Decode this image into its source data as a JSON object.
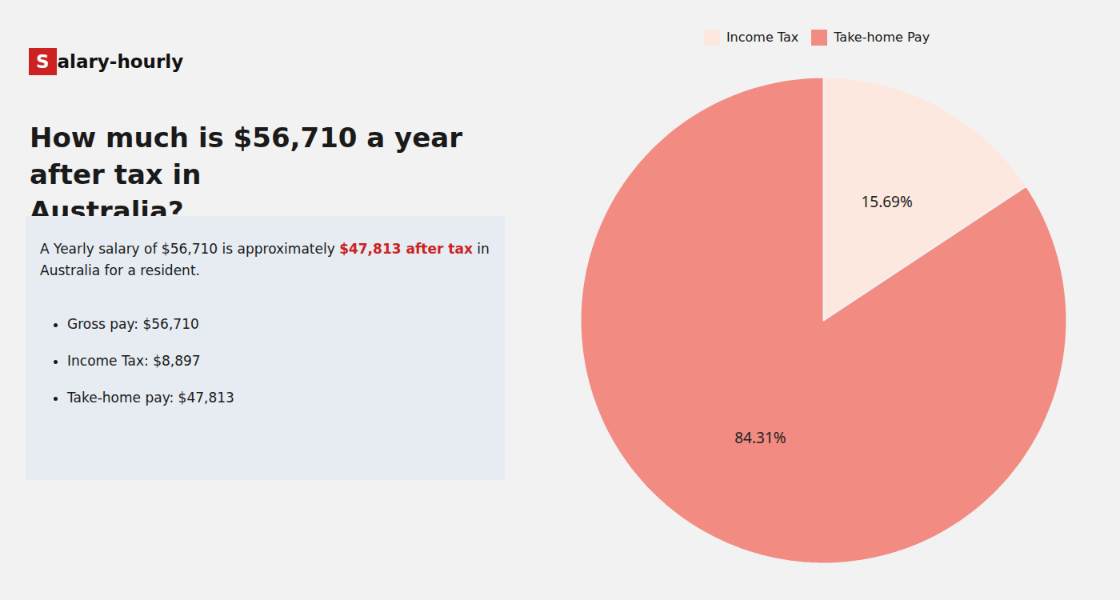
{
  "chart_data": {
    "type": "pie",
    "title": "How much is $56,710 a year after tax in\nAustralia?",
    "categories": [
      "Income Tax",
      "Take-home Pay"
    ],
    "values": [
      15.69,
      84.31
    ],
    "value_labels": [
      "15.69%",
      "84.31%"
    ],
    "colors": [
      "#fce8df",
      "#f28b82"
    ],
    "data_labels": true,
    "legend": "top",
    "annotations": [
      [
        {
          "text": "S",
          "color": "#ffffff",
          "background": "#cc2222"
        },
        {
          "text": "alary-hourly",
          "color": "#111111"
        }
      ],
      [
        {
          "text": "A Yearly salary of $56,710 is approximately "
        },
        {
          "text": "$47,813 after tax",
          "color": "#cc2222"
        },
        {
          "text": " in"
        }
      ],
      [
        {
          "text": "Australia for a resident."
        }
      ],
      [
        {
          "text": "Gross pay: $56,710"
        }
      ],
      [
        {
          "text": "Income Tax: $8,897"
        }
      ],
      [
        {
          "text": "Take-home pay: $47,813"
        }
      ]
    ]
  }
}
